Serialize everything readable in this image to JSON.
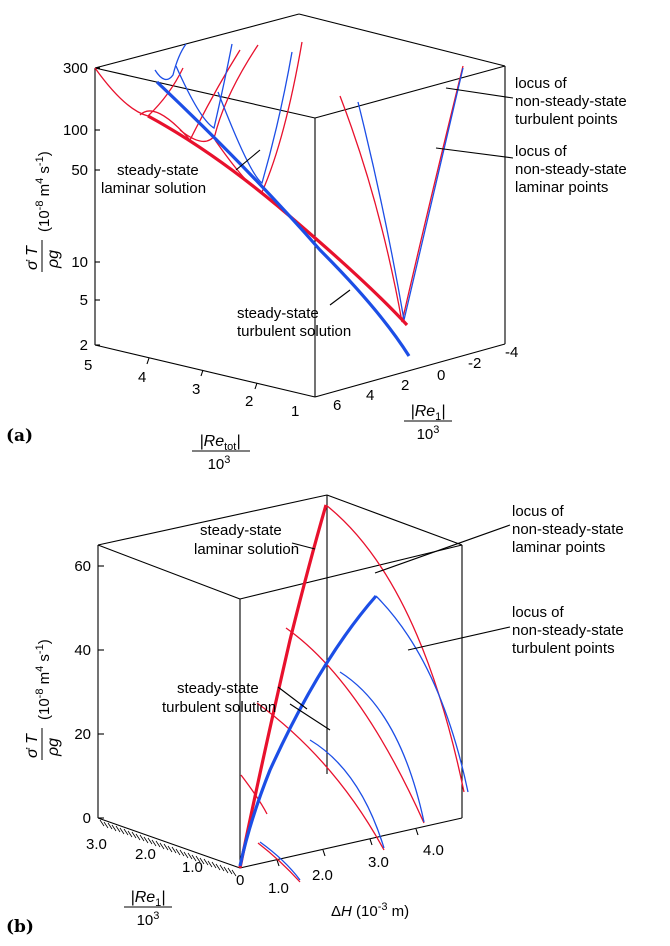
{
  "chart_data": [
    {
      "panel": "(a)",
      "type": "line3d",
      "zlabel": "(10-8 m4 s-1)",
      "z_scale": "log",
      "z_ticks": [
        "300",
        "100",
        "50",
        "10",
        "5",
        "2"
      ],
      "xlabel": "|Retot| / 10^3",
      "x_ticks": [
        "5",
        "4",
        "3",
        "2",
        "1"
      ],
      "ylabel": "|Re1| / 10^3",
      "y_ticks": [
        "6",
        "4",
        "2",
        "0",
        "-2",
        "-4"
      ],
      "annotations": [
        "steady-state laminar solution",
        "steady-state turbulent solution",
        "locus of non-steady-state turbulent points",
        "locus of non-steady-state laminar points"
      ],
      "series": [
        {
          "name": "steady-state laminar solution",
          "color": "#e8112d",
          "Retot_1e3": [
            4.6,
            4.0,
            3.0,
            2.0,
            1.2
          ],
          "Tdot_1e-8": [
            150,
            90,
            28,
            9,
            3.2
          ]
        },
        {
          "name": "steady-state turbulent solution",
          "color": "#1c4ee6",
          "Retot_1e3": [
            4.0,
            3.0,
            2.0,
            1.2
          ],
          "Tdot_1e-8": [
            200,
            55,
            14,
            2.2
          ]
        },
        {
          "name": "locus of non-steady-state laminar points",
          "color": "#e8112d"
        },
        {
          "name": "locus of non-steady-state turbulent points",
          "color": "#1c4ee6"
        }
      ]
    },
    {
      "panel": "(b)",
      "type": "line3d",
      "zlabel": "(10-8 m4 s-1)",
      "z_ticks": [
        "0",
        "20",
        "40",
        "60"
      ],
      "z_range": [
        0,
        65
      ],
      "xlabel": "ΔH (10-3 m)",
      "x_ticks": [
        "0",
        "1.0",
        "2.0",
        "3.0",
        "4.0"
      ],
      "x_range": [
        0,
        4.5
      ],
      "ylabel": "|Re1| / 10^3",
      "y_ticks": [
        "0",
        "1.0",
        "2.0",
        "3.0"
      ],
      "annotations": [
        "steady-state laminar solution",
        "steady-state turbulent solution",
        "locus of non-steady-state laminar points",
        "locus of non-steady-state turbulent points"
      ],
      "series": [
        {
          "name": "steady-state laminar solution",
          "color": "#e8112d",
          "dH_1e-3": [
            0,
            1.0,
            2.0,
            3.0,
            4.4
          ],
          "Tdot_1e-8": [
            0,
            14,
            30,
            46,
            65
          ]
        },
        {
          "name": "steady-state turbulent solution",
          "color": "#1c4ee6",
          "dH_1e-3": [
            0,
            1.0,
            2.0,
            3.0,
            4.4
          ],
          "Tdot_1e-8": [
            0,
            10,
            22,
            35,
            50
          ]
        },
        {
          "name": "locus of non-steady-state laminar points",
          "color": "#e8112d"
        },
        {
          "name": "locus of non-steady-state turbulent points",
          "color": "#1c4ee6"
        }
      ]
    }
  ],
  "a": {
    "panel_label": "(a)",
    "ylabel_units": "(10-8 m4 s-1)",
    "ticks_z": [
      "300",
      "100",
      "50",
      "10",
      "5",
      "2"
    ],
    "ticks_x": [
      "5",
      "4",
      "3",
      "2",
      "1"
    ],
    "ticks_y": [
      "6",
      "4",
      "2",
      "0",
      "-2",
      "-4"
    ],
    "xlabel_num": "|Retot|",
    "xlabel_den": "103",
    "ylabel_num": "|Re1|",
    "ylabel_den": "103",
    "ann_lam": [
      "steady-state",
      "laminar solution"
    ],
    "ann_turb": [
      "steady-state",
      "turbulent solution"
    ],
    "loc_turb": [
      "locus of",
      "non-steady-state",
      "turbulent points"
    ],
    "loc_lam": [
      "locus of",
      "non-steady-state",
      "laminar points"
    ]
  },
  "b": {
    "panel_label": "(b)",
    "ylabel_units": "(10-8 m4 s-1)",
    "ticks_z": [
      "60",
      "40",
      "20",
      "0"
    ],
    "ticks_y": [
      "3.0",
      "2.0",
      "1.0",
      "0"
    ],
    "ticks_x": [
      "1.0",
      "2.0",
      "3.0",
      "4.0"
    ],
    "xlabel": "ΔH (10-3 m)",
    "ylabel_num": "|Re1|",
    "ylabel_den": "103",
    "ann_lam": [
      "steady-state",
      "laminar solution"
    ],
    "ann_turb": [
      "steady-state",
      "turbulent solution"
    ],
    "loc_lam": [
      "locus of",
      "non-steady-state",
      "laminar points"
    ],
    "loc_turb": [
      "locus of",
      "non-steady-state",
      "turbulent points"
    ]
  },
  "colors": {
    "laminar": "#e8112d",
    "turbulent": "#1c4ee6"
  }
}
